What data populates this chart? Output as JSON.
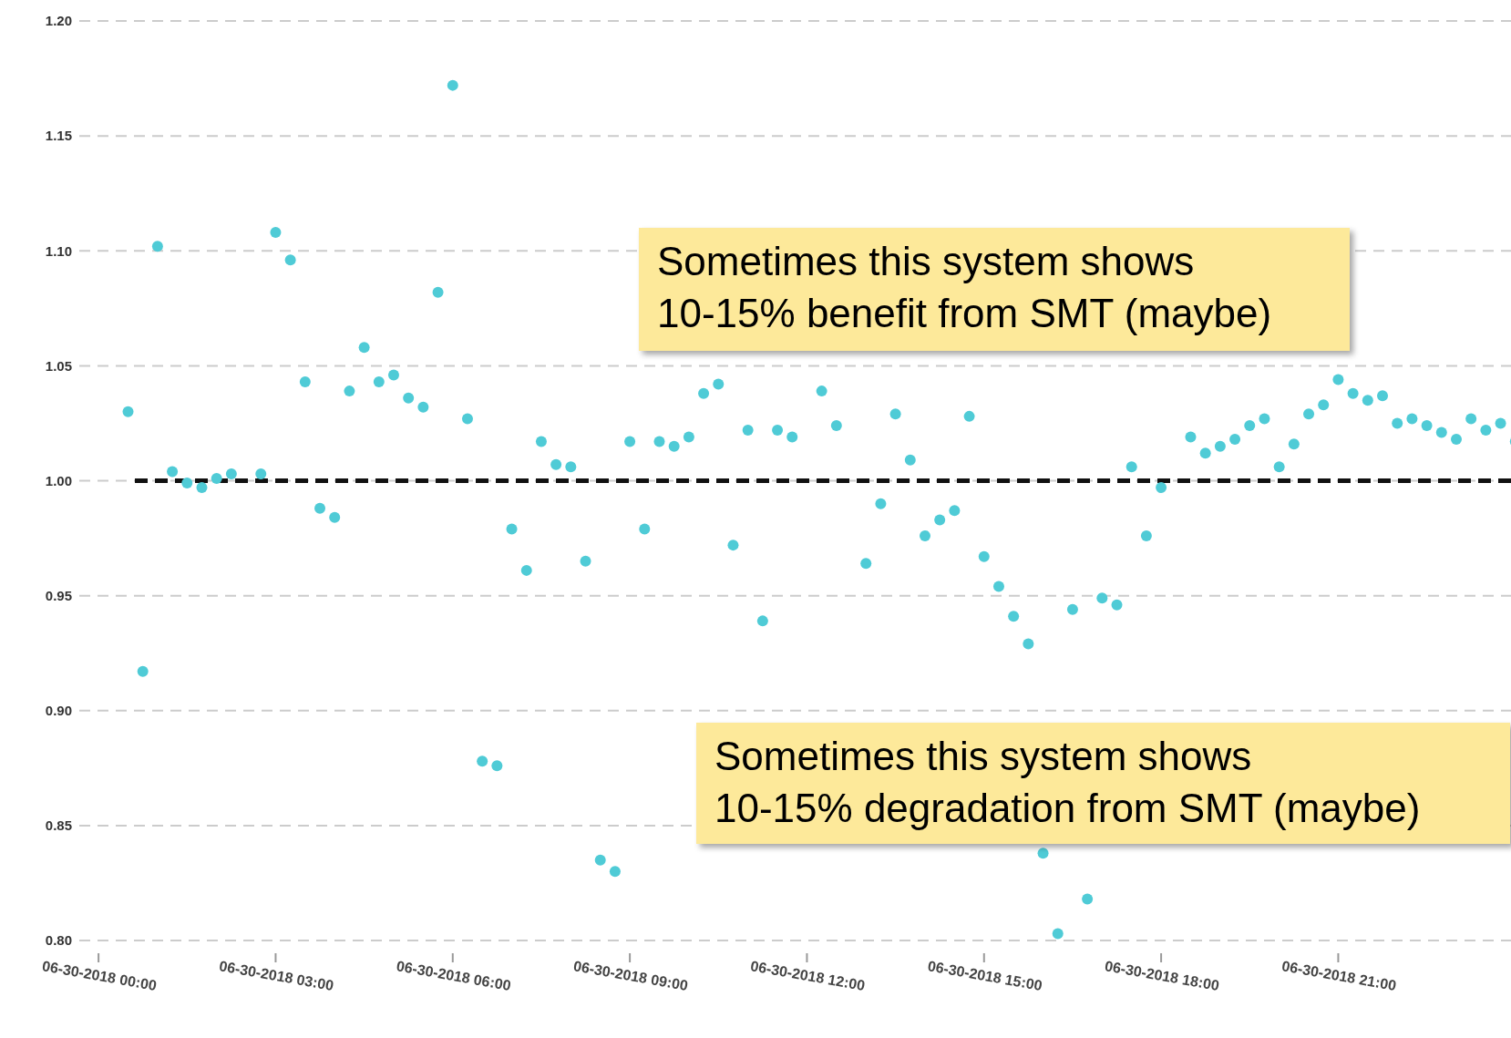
{
  "chart_data": {
    "type": "scatter",
    "x": [
      "2018-06-30T00:30",
      "2018-06-30T00:45",
      "2018-06-30T01:00",
      "2018-06-30T01:15",
      "2018-06-30T01:30",
      "2018-06-30T01:45",
      "2018-06-30T02:00",
      "2018-06-30T02:15",
      "2018-06-30T02:45",
      "2018-06-30T03:00",
      "2018-06-30T03:15",
      "2018-06-30T03:30",
      "2018-06-30T03:45",
      "2018-06-30T04:00",
      "2018-06-30T04:15",
      "2018-06-30T04:30",
      "2018-06-30T04:45",
      "2018-06-30T05:00",
      "2018-06-30T05:15",
      "2018-06-30T05:30",
      "2018-06-30T05:45",
      "2018-06-30T06:00",
      "2018-06-30T06:15",
      "2018-06-30T06:30",
      "2018-06-30T06:45",
      "2018-06-30T07:00",
      "2018-06-30T07:15",
      "2018-06-30T07:30",
      "2018-06-30T07:45",
      "2018-06-30T08:00",
      "2018-06-30T08:15",
      "2018-06-30T08:30",
      "2018-06-30T08:45",
      "2018-06-30T09:00",
      "2018-06-30T09:15",
      "2018-06-30T09:30",
      "2018-06-30T09:45",
      "2018-06-30T10:00",
      "2018-06-30T10:15",
      "2018-06-30T10:30",
      "2018-06-30T10:45",
      "2018-06-30T11:00",
      "2018-06-30T11:15",
      "2018-06-30T11:30",
      "2018-06-30T11:45",
      "2018-06-30T12:15",
      "2018-06-30T12:30",
      "2018-06-30T13:00",
      "2018-06-30T13:15",
      "2018-06-30T13:30",
      "2018-06-30T13:45",
      "2018-06-30T14:00",
      "2018-06-30T14:15",
      "2018-06-30T14:30",
      "2018-06-30T14:45",
      "2018-06-30T15:00",
      "2018-06-30T15:15",
      "2018-06-30T15:30",
      "2018-06-30T15:45",
      "2018-06-30T16:00",
      "2018-06-30T16:15",
      "2018-06-30T16:30",
      "2018-06-30T16:45",
      "2018-06-30T17:00",
      "2018-06-30T17:15",
      "2018-06-30T17:30",
      "2018-06-30T17:45",
      "2018-06-30T18:00",
      "2018-06-30T18:30",
      "2018-06-30T18:45",
      "2018-06-30T19:00",
      "2018-06-30T19:15",
      "2018-06-30T19:30",
      "2018-06-30T19:45",
      "2018-06-30T20:00",
      "2018-06-30T20:15",
      "2018-06-30T20:30",
      "2018-06-30T20:45",
      "2018-06-30T21:00",
      "2018-06-30T21:15",
      "2018-06-30T21:30",
      "2018-06-30T21:45",
      "2018-06-30T22:00",
      "2018-06-30T22:15",
      "2018-06-30T22:30",
      "2018-06-30T22:45",
      "2018-06-30T23:00",
      "2018-06-30T23:15",
      "2018-06-30T23:30",
      "2018-06-30T23:45",
      "2018-07-01T00:00"
    ],
    "series": [
      {
        "color": "#4fcbd6",
        "values": [
          1.03,
          0.917,
          1.102,
          1.004,
          0.999,
          0.997,
          1.001,
          1.003,
          1.003,
          1.108,
          1.096,
          1.043,
          0.988,
          0.984,
          1.039,
          1.058,
          1.043,
          1.046,
          1.036,
          1.032,
          1.082,
          1.172,
          1.027,
          0.878,
          0.876,
          0.979,
          0.961,
          1.017,
          1.007,
          1.006,
          0.965,
          0.835,
          0.83,
          1.017,
          0.979,
          1.017,
          1.015,
          1.019,
          1.038,
          1.042,
          0.972,
          1.022,
          0.939,
          1.022,
          1.019,
          1.039,
          1.024,
          0.964,
          0.99,
          1.029,
          1.009,
          0.976,
          0.983,
          0.987,
          1.028,
          0.967,
          0.954,
          0.941,
          0.929,
          0.838,
          0.803,
          0.944,
          0.818,
          0.949,
          0.946,
          1.006,
          0.976,
          0.997,
          1.019,
          1.012,
          1.015,
          1.018,
          1.024,
          1.027,
          1.006,
          1.016,
          1.029,
          1.033,
          1.044,
          1.038,
          1.035,
          1.037,
          1.025,
          1.027,
          1.024,
          1.021,
          1.018,
          1.027,
          1.022,
          1.025,
          1.017
        ]
      }
    ],
    "xlim": [
      "2018-06-29T23:46",
      "2018-07-01T00:03"
    ],
    "xticks": [
      {
        "value": "2018-06-30T00:00",
        "label": "06-30-2018 00:00"
      },
      {
        "value": "2018-06-30T03:00",
        "label": "06-30-2018 03:00"
      },
      {
        "value": "2018-06-30T06:00",
        "label": "06-30-2018 06:00"
      },
      {
        "value": "2018-06-30T09:00",
        "label": "06-30-2018 09:00"
      },
      {
        "value": "2018-06-30T12:00",
        "label": "06-30-2018 12:00"
      },
      {
        "value": "2018-06-30T15:00",
        "label": "06-30-2018 15:00"
      },
      {
        "value": "2018-06-30T18:00",
        "label": "06-30-2018 18:00"
      },
      {
        "value": "2018-06-30T21:00",
        "label": "06-30-2018 21:00"
      }
    ],
    "ylim": [
      0.8,
      1.2
    ],
    "yticks": [
      {
        "value": 0.8,
        "label": "0.80"
      },
      {
        "value": 0.85,
        "label": "0.85"
      },
      {
        "value": 0.9,
        "label": "0.90"
      },
      {
        "value": 0.95,
        "label": "0.95"
      },
      {
        "value": 1.0,
        "label": "1.00"
      },
      {
        "value": 1.05,
        "label": "1.05"
      },
      {
        "value": 1.1,
        "label": "1.10"
      },
      {
        "value": 1.15,
        "label": "1.15"
      },
      {
        "value": 1.2,
        "label": "1.20"
      }
    ],
    "grid": "y",
    "marker": "circle",
    "ref_lines": [
      {
        "axis": "y",
        "value": 1.0,
        "color": "#111111",
        "line_style": "dashed"
      }
    ],
    "annotations": [
      "Sometimes this system shows\n10-15% benefit from SMT (maybe)",
      "Sometimes this system shows\n10-15% degradation from SMT (maybe)"
    ]
  }
}
